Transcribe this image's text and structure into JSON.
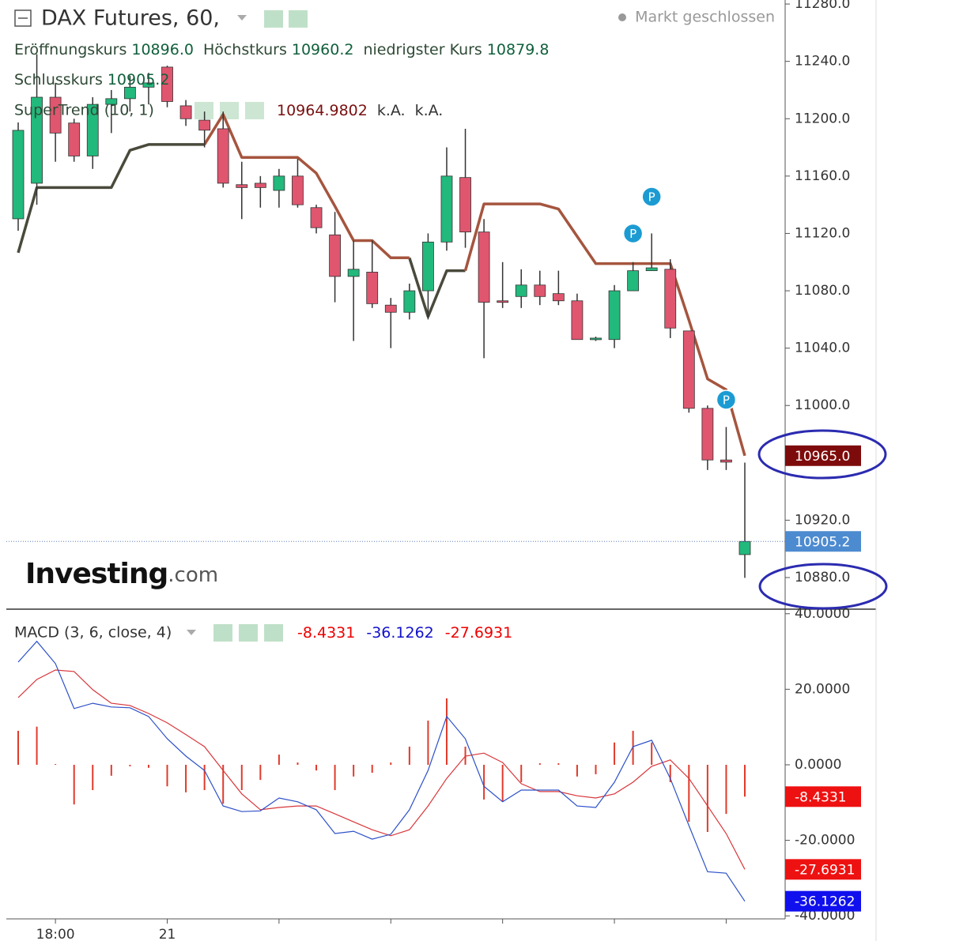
{
  "chart_data": [
    {
      "type": "candlestick",
      "title": "DAX Futures, 60,",
      "status": "Markt geschlossen",
      "ohlc_legend": [
        {
          "name": "Eröffnungskurs",
          "label": "10896.0"
        },
        {
          "name": "Höchstkurs",
          "label": "10960.2"
        },
        {
          "name": "niedrigster Kurs",
          "label": "10879.8"
        },
        {
          "name": "Schlusskurs",
          "label": "10905.2"
        }
      ],
      "categories": [
        null,
        null,
        "18:00",
        null,
        null,
        null,
        null,
        null,
        "21",
        null,
        null,
        null,
        null,
        null,
        null,
        null,
        null,
        null,
        null,
        null,
        null,
        null,
        null,
        null,
        null,
        null,
        null,
        null,
        null,
        null,
        null,
        null,
        null,
        null,
        null,
        null,
        null,
        null,
        null,
        null
      ],
      "open": [
        11130.2,
        11155,
        11215,
        11197,
        11174,
        11210,
        11214,
        11222,
        11236,
        11209,
        11199,
        11193,
        11154,
        11155,
        11150,
        11160,
        11138,
        11119,
        11090,
        11093,
        11070,
        11065,
        11080,
        11114,
        11159,
        11121,
        11073,
        11076,
        11084,
        11078,
        11073,
        11046,
        11046,
        11080,
        11094,
        11095,
        11052,
        10998,
        10962,
        10896
      ],
      "high": [
        11197.4,
        11245,
        11225,
        11200,
        11215,
        11220,
        11230,
        11232,
        11237,
        11213,
        11205,
        11205,
        11170,
        11160,
        11165,
        11172,
        11140,
        11135,
        11115,
        11115,
        11075,
        11085,
        11120,
        11180,
        11193,
        11130,
        11100,
        11095,
        11094,
        11094,
        11078,
        11048,
        11084,
        11100,
        11120,
        11102,
        11052,
        11000,
        10985,
        10960.2
      ],
      "low": [
        11121.9,
        11140,
        11170,
        11170,
        11165,
        11190,
        11205,
        11210,
        11208,
        11195,
        11180,
        11152,
        11130,
        11138,
        11138,
        11138,
        11120,
        11072,
        11045,
        11068,
        11040,
        11060,
        11060,
        11108,
        11110,
        11033,
        11068,
        11068,
        11070,
        11070,
        11046,
        11045,
        11040,
        11080,
        11094,
        11047,
        10995,
        10955,
        10955,
        10879.8
      ],
      "close": [
        11191.9,
        11215,
        11190,
        11174,
        11210,
        11214,
        11222,
        11225,
        11212,
        11200,
        11192,
        11155,
        11152,
        11152,
        11160,
        11140,
        11124,
        11090,
        11095,
        11071,
        11065,
        11080,
        11114,
        11160,
        11121,
        11072,
        11072,
        11084,
        11076,
        11073,
        11046,
        11047,
        11080,
        11094,
        11096,
        11054,
        10998,
        10962,
        10960.5,
        10905.2
      ],
      "up_color": "#22b97c",
      "down_color": "#e0566f",
      "ylim": [
        10858.5,
        11282.8
      ],
      "yticks": [
        {
          "value": 11280,
          "label": "11280.0"
        },
        {
          "value": 11240,
          "label": "11240.0"
        },
        {
          "value": 11200,
          "label": "11200.0"
        },
        {
          "value": 11160,
          "label": "11160.0"
        },
        {
          "value": 11120,
          "label": "11120.0"
        },
        {
          "value": 11080,
          "label": "11080.0"
        },
        {
          "value": 11040,
          "label": "11040.0"
        },
        {
          "value": 11000,
          "label": "11000.0"
        },
        {
          "value": 10920,
          "label": "10920.0"
        },
        {
          "value": 10880,
          "label": "10880.0"
        }
      ],
      "supertrend": {
        "title": "SuperTrend (10, 1)",
        "extra": [
          "k.A.",
          "k.A."
        ],
        "badge": "10965.0",
        "series": [
          {
            "color": "#4a4a3c",
            "values": [
              11106.5,
              11152,
              11152,
              11152,
              11152,
              11152,
              11178,
              11182,
              11182,
              11182,
              11182,
              null,
              null,
              null,
              null,
              null,
              null,
              null,
              null,
              null,
              null,
              11103,
              11062,
              11094,
              11094,
              null,
              null,
              null,
              null,
              null,
              null,
              null,
              null,
              null,
              null,
              null,
              null,
              null,
              null,
              null
            ]
          },
          {
            "color": "#a5553e",
            "values": [
              null,
              null,
              null,
              null,
              null,
              null,
              null,
              null,
              null,
              null,
              11182,
              11203,
              11173,
              11173,
              11173,
              11173,
              11162,
              11139,
              11115,
              11115,
              11103,
              11103,
              null,
              null,
              11094,
              11140.6,
              11140.6,
              11140.6,
              11140.6,
              11137,
              11118,
              11099,
              11099,
              11099,
              11099,
              11099,
              11059.6,
              11018.5,
              11011,
              10964.9802
            ]
          }
        ]
      },
      "markers": [
        {
          "index": 33,
          "price": 11120,
          "label": "P"
        },
        {
          "index": 34,
          "price": 11145.6,
          "label": "P"
        },
        {
          "index": 38,
          "price": 11004,
          "label": "P"
        }
      ],
      "logo": "Investing",
      "logo_suffix": ".com"
    },
    {
      "type": "macd",
      "title": "MACD (3, 6, close, 4)",
      "histogram": {
        "color": "#e03a2a",
        "values": [
          9.0,
          10.1,
          0.2,
          -10.5,
          -6.7,
          -2.9,
          -0.4,
          -0.8,
          -5.7,
          -7.3,
          -6.7,
          -10.3,
          -6.7,
          -4.0,
          2.7,
          0.6,
          -1.5,
          -6.7,
          -3.1,
          -2.1,
          0.6,
          4.8,
          11.7,
          17.6,
          4.8,
          -9.2,
          -9.8,
          -4.6,
          0.4,
          0.4,
          -3.1,
          -2.5,
          5.9,
          9.0,
          5.9,
          -4.6,
          -15.1,
          -17.8,
          -13.0,
          -8.4331
        ]
      },
      "macd": {
        "color": "#2c50c8",
        "values": [
          27.2,
          32.7,
          26.8,
          14.9,
          16.3,
          15.3,
          15.1,
          12.8,
          6.9,
          2.3,
          -1.5,
          -10.9,
          -12.4,
          -12.2,
          -8.8,
          -9.8,
          -11.9,
          -18.2,
          -17.6,
          -19.7,
          -18.4,
          -11.9,
          -1.5,
          12.8,
          6.9,
          -5.7,
          -9.8,
          -6.7,
          -6.7,
          -6.7,
          -10.9,
          -11.3,
          -4.6,
          4.8,
          6.5,
          -3.6,
          -16.1,
          -28.3,
          -28.7,
          -36.1262
        ]
      },
      "signal": {
        "color": "#d8363a",
        "values": [
          17.8,
          22.6,
          25.1,
          24.7,
          19.9,
          16.3,
          15.7,
          13.6,
          11.1,
          8.0,
          4.8,
          -1.5,
          -7.7,
          -11.9,
          -11.3,
          -10.9,
          -10.9,
          -13.0,
          -15.1,
          -17.2,
          -18.8,
          -17.2,
          -10.9,
          -3.6,
          2.3,
          3.1,
          0.6,
          -5.0,
          -7.1,
          -7.1,
          -8.2,
          -8.8,
          -7.7,
          -4.6,
          -0.4,
          1.3,
          -3.6,
          -10.9,
          -18.2,
          -27.6931
        ]
      },
      "ylim": [
        -40.8,
        41
      ],
      "yticks": [
        {
          "value": 40,
          "label": "40.0000"
        },
        {
          "value": 20,
          "label": "20.0000"
        },
        {
          "value": 0,
          "label": "0.0000"
        },
        {
          "value": -20,
          "label": "-20.0000"
        },
        {
          "value": -40,
          "label": "-40.0000"
        }
      ]
    }
  ]
}
